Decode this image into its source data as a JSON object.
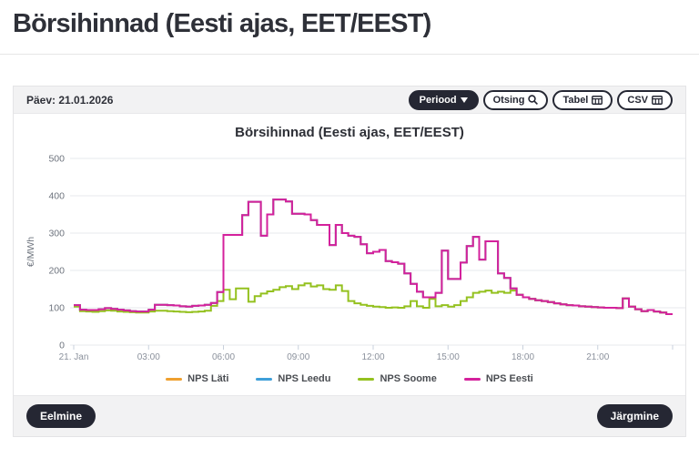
{
  "page": {
    "title": "Börsihinnad (Eesti ajas, EET/EEST)"
  },
  "toolbar": {
    "date_label": "Päev: 21.01.2026",
    "buttons": [
      {
        "label": "Periood",
        "icon": "caret-down-icon",
        "style": "dark"
      },
      {
        "label": "Otsing",
        "icon": "search-icon",
        "style": "light"
      },
      {
        "label": "Tabel",
        "icon": "table-icon",
        "style": "light"
      },
      {
        "label": "CSV",
        "icon": "table-icon",
        "style": "light"
      }
    ]
  },
  "footer": {
    "previous_label": "Eelmine",
    "next_label": "Järgmine"
  },
  "colors": {
    "accent_dark": "#252733",
    "toolbar_bg": "#f2f2f3",
    "grid": "#e7e9ee",
    "axis_tick": "#c9d1dc",
    "x_label": "#8b919c",
    "y_label": "#6e747e"
  },
  "chart_data": {
    "type": "line",
    "subtype": "step",
    "title": "Börsihinnad (Eesti ajas, EET/EEST)",
    "xlabel": "",
    "ylabel": "€/MWh",
    "ylim": [
      0,
      500
    ],
    "yticks": [
      0,
      100,
      200,
      300,
      400,
      500
    ],
    "x_start": "21. Jan 00:00",
    "x_hours": 24,
    "step_minutes": 15,
    "xtick_hours": [
      0,
      3,
      6,
      9,
      12,
      15,
      18,
      21
    ],
    "xticklabels": [
      "21. Jan",
      "03:00",
      "06:00",
      "09:00",
      "12:00",
      "15:00",
      "18:00",
      "21:00"
    ],
    "grid": "horizontal",
    "legend_position": "bottom",
    "note": "NPS Läti and NPS Leedu coincide with NPS Eesti and are hidden beneath it",
    "series": [
      {
        "name": "NPS Läti",
        "color": "#efa02f",
        "values": [
          107,
          95,
          94,
          94,
          96,
          99,
          97,
          95,
          93,
          91,
          90,
          90,
          95,
          108,
          108,
          107,
          106,
          104,
          103,
          105,
          106,
          108,
          113,
          142,
          295,
          295,
          295,
          348,
          384,
          384,
          293,
          350,
          390,
          390,
          385,
          352,
          352,
          350,
          335,
          322,
          322,
          268,
          322,
          300,
          293,
          290,
          270,
          246,
          250,
          255,
          225,
          222,
          218,
          192,
          164,
          143,
          128,
          128,
          140,
          253,
          177,
          177,
          221,
          265,
          290,
          229,
          278,
          278,
          192,
          180,
          152,
          135,
          128,
          124,
          120,
          118,
          115,
          112,
          109,
          107,
          106,
          104,
          103,
          102,
          101,
          100,
          100,
          99,
          125,
          103,
          96,
          91,
          94,
          90,
          87,
          83
        ]
      },
      {
        "name": "NPS Leedu",
        "color": "#3e9fd9",
        "values": [
          107,
          95,
          94,
          94,
          96,
          99,
          97,
          95,
          93,
          91,
          90,
          90,
          95,
          108,
          108,
          107,
          106,
          104,
          103,
          105,
          106,
          108,
          113,
          142,
          295,
          295,
          295,
          348,
          384,
          384,
          293,
          350,
          390,
          390,
          385,
          352,
          352,
          350,
          335,
          322,
          322,
          268,
          322,
          300,
          293,
          290,
          270,
          246,
          250,
          255,
          225,
          222,
          218,
          192,
          164,
          143,
          128,
          128,
          140,
          253,
          177,
          177,
          221,
          265,
          290,
          229,
          278,
          278,
          192,
          180,
          152,
          135,
          128,
          124,
          120,
          118,
          115,
          112,
          109,
          107,
          106,
          104,
          103,
          102,
          101,
          100,
          100,
          99,
          125,
          103,
          96,
          91,
          94,
          90,
          87,
          83
        ]
      },
      {
        "name": "NPS Soome",
        "color": "#94c11f",
        "values": [
          103,
          91,
          90,
          89,
          91,
          93,
          92,
          90,
          89,
          88,
          87,
          87,
          90,
          92,
          92,
          91,
          90,
          89,
          88,
          89,
          90,
          92,
          105,
          118,
          148,
          123,
          152,
          152,
          116,
          131,
          138,
          144,
          148,
          155,
          158,
          150,
          160,
          165,
          157,
          160,
          150,
          148,
          160,
          145,
          118,
          112,
          108,
          105,
          103,
          102,
          100,
          101,
          100,
          104,
          118,
          104,
          100,
          124,
          104,
          107,
          103,
          107,
          118,
          128,
          140,
          143,
          146,
          140,
          143,
          140,
          146,
          135,
          128,
          124,
          120,
          118,
          115,
          112,
          109,
          107,
          106,
          104,
          103,
          102,
          101,
          100,
          100,
          99,
          125,
          103,
          96,
          91,
          94,
          90,
          87,
          83
        ]
      },
      {
        "name": "NPS Eesti",
        "color": "#d4219c",
        "values": [
          107,
          95,
          94,
          94,
          96,
          99,
          97,
          95,
          93,
          91,
          90,
          90,
          95,
          108,
          108,
          107,
          106,
          104,
          103,
          105,
          106,
          108,
          113,
          142,
          295,
          295,
          295,
          348,
          384,
          384,
          293,
          350,
          390,
          390,
          385,
          352,
          352,
          350,
          335,
          322,
          322,
          268,
          322,
          300,
          293,
          290,
          270,
          246,
          250,
          255,
          225,
          222,
          218,
          192,
          164,
          143,
          128,
          128,
          140,
          253,
          177,
          177,
          221,
          265,
          290,
          229,
          278,
          278,
          192,
          180,
          152,
          135,
          128,
          124,
          120,
          118,
          115,
          112,
          109,
          107,
          106,
          104,
          103,
          102,
          101,
          100,
          100,
          99,
          125,
          103,
          96,
          91,
          94,
          90,
          87,
          83
        ]
      }
    ]
  }
}
